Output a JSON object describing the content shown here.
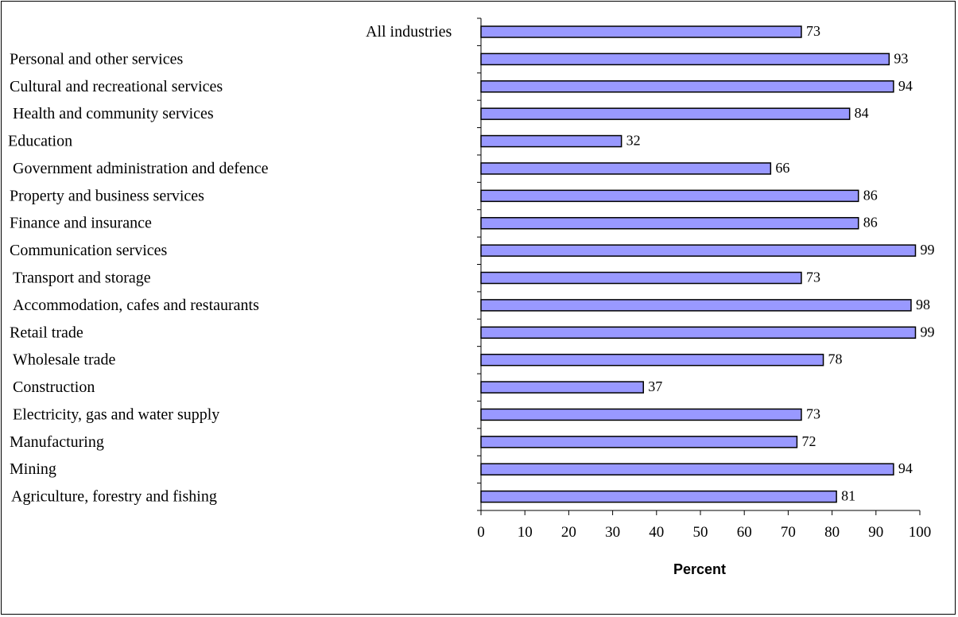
{
  "chart_data": {
    "type": "bar",
    "orientation": "horizontal",
    "title": "",
    "xlabel": "Percent",
    "ylabel": "",
    "xlim": [
      0,
      100
    ],
    "x_ticks": [
      0,
      10,
      20,
      30,
      40,
      50,
      60,
      70,
      80,
      90,
      100
    ],
    "grid": false,
    "legend": "none",
    "bar_color": "#9999ff",
    "bar_edge_color": "#000000",
    "categories": [
      "All industries",
      "Personal and other services",
      "Cultural and recreational services",
      "Health and community services",
      "Education",
      "Government administration and defence",
      "Property and business services",
      "Finance and insurance",
      "Communication services",
      "Transport and storage",
      "Accommodation, cafes and restaurants",
      "Retail trade",
      "Wholesale trade",
      "Construction",
      "Electricity, gas and water supply",
      "Manufacturing",
      "Mining",
      "Agriculture, forestry and fishing"
    ],
    "values": [
      73,
      93,
      94,
      84,
      32,
      66,
      86,
      86,
      99,
      73,
      98,
      99,
      78,
      37,
      73,
      72,
      94,
      81
    ],
    "data_labels": [
      "73",
      "93",
      "94",
      "84",
      "32",
      "66",
      "86",
      "86",
      "99",
      "73",
      "98",
      "99",
      "78",
      "37",
      "73",
      "72",
      "94",
      "81"
    ]
  }
}
